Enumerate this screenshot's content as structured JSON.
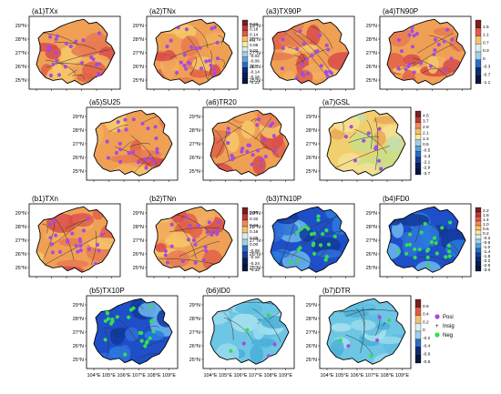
{
  "chart_data": {
    "type": "map-grid",
    "x_ticks": [
      "104°E",
      "105°E",
      "106°E",
      "107°E",
      "108°E",
      "109°E"
    ],
    "y_ticks": [
      "25°N",
      "26°N",
      "27°N",
      "28°N",
      "29°N"
    ],
    "panels": [
      {
        "id": "a1",
        "label": "(a1)TXx",
        "scheme": "warm"
      },
      {
        "id": "a2",
        "label": "(a2)TNx",
        "scheme": "warm",
        "colorbar": [
          "0.22",
          "0.18",
          "0.14",
          "0.1",
          "0.06",
          "0.02",
          "-0.02",
          "-0.06",
          "-0.1",
          "-0.14",
          "-0.18",
          "-0.22"
        ]
      },
      {
        "id": "a3",
        "label": "(a3)TX90P",
        "scheme": "warm"
      },
      {
        "id": "a4",
        "label": "(a4)TN90P",
        "scheme": "warm",
        "colorbar": [
          "1.5",
          "1.1",
          "0.7",
          "0.3",
          "0",
          "-0.3",
          "-0.7",
          "-1.1"
        ]
      },
      {
        "id": "a5",
        "label": "(a5)SU25",
        "scheme": "warm"
      },
      {
        "id": "a6",
        "label": "(a6)TR20",
        "scheme": "warm"
      },
      {
        "id": "a7",
        "label": "(a7)GSL",
        "scheme": "gsl",
        "colorbar": [
          "4.5",
          "3.7",
          "2.9",
          "2.1",
          "1.3",
          "0.5",
          "-0.5",
          "-1.3",
          "-2.1",
          "-2.9",
          "-3.7"
        ]
      },
      {
        "id": "b1",
        "label": "(b1)TXn",
        "scheme": "warm"
      },
      {
        "id": "b2",
        "label": "(b2)TNn",
        "scheme": "warm",
        "colorbar": [
          "0.40",
          "0.32",
          "0.24",
          "0.16",
          "0.08",
          "0.00",
          "-0.08",
          "-0.16",
          "-0.24",
          "-0.32"
        ]
      },
      {
        "id": "b3",
        "label": "(b3)TN10P",
        "scheme": "cold"
      },
      {
        "id": "b4",
        "label": "(b4)FD0",
        "scheme": "cold",
        "colorbar": [
          "2.2",
          "1.8",
          "1.4",
          "1.0",
          "0.6",
          "0.2",
          "-0.2",
          "-0.6",
          "-1.0",
          "-1.4",
          "-1.8",
          "-2.2",
          "-2.6",
          "-3.0"
        ]
      },
      {
        "id": "b5",
        "label": "(b5)TX10P",
        "scheme": "cold"
      },
      {
        "id": "b6",
        "label": "(b6)ID0",
        "scheme": "cyan"
      },
      {
        "id": "b7",
        "label": "(b7)DTR",
        "scheme": "cyan",
        "colorbar": [
          "0.6",
          "0.4",
          "0.2",
          "0",
          "-0.2",
          "-0.4",
          "-0.6",
          "-0.8"
        ]
      }
    ],
    "legend": [
      {
        "label": "Posi",
        "color": "#a64ddb"
      },
      {
        "label": "Insig",
        "color": "#7a7a7a"
      },
      {
        "label": "Neg",
        "color": "#33dd55"
      }
    ]
  }
}
